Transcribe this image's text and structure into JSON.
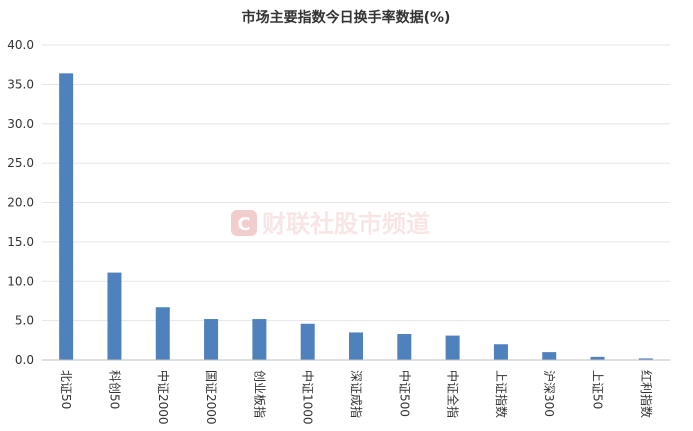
{
  "chart_data": {
    "type": "bar",
    "title": "市场主要指数今日换手率数据(%)",
    "categories": [
      "北证50",
      "科创50",
      "中证2000",
      "国证2000",
      "创业板指",
      "中证1000",
      "深证成指",
      "中证500",
      "中证全指",
      "上证指数",
      "沪深300",
      "上证50",
      "红利指数"
    ],
    "values": [
      36.4,
      11.1,
      6.7,
      5.2,
      5.2,
      4.6,
      3.5,
      3.3,
      3.1,
      2.0,
      1.0,
      0.4,
      0.2
    ],
    "ylim": [
      0,
      40
    ],
    "yticks": [
      "0.0",
      "5.0",
      "10.0",
      "15.0",
      "20.0",
      "25.0",
      "30.0",
      "35.0",
      "40.0"
    ],
    "xlabel": "",
    "ylabel": "",
    "grid": true,
    "bar_color": "#4f81bd"
  },
  "watermark": {
    "icon": "c-logo-icon",
    "text": "财联社股市频道",
    "color": "#e9a5a5"
  }
}
